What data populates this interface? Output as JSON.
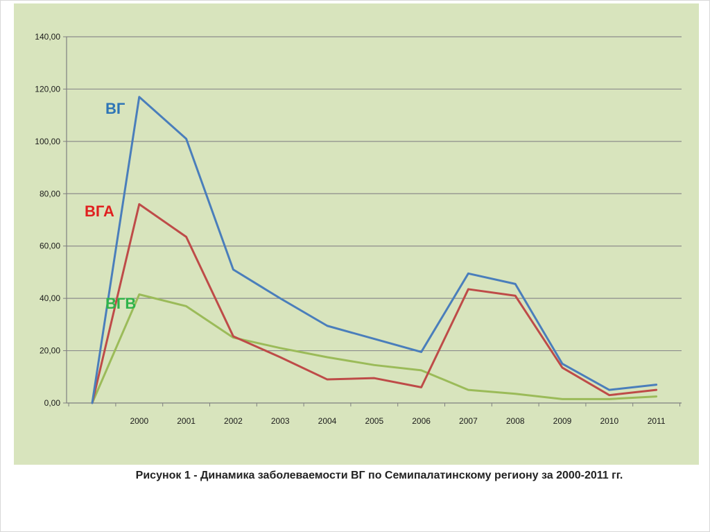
{
  "caption": "Рисунок 1 - Динамика заболеваемости ВГ по Семипалатинскому региону за 2000-2011 гг.",
  "colors": {
    "panel_background": "#d8e4bd",
    "gridline": "#8c8c8c"
  },
  "chart_data": {
    "type": "line",
    "x": [
      "",
      "2000",
      "2001",
      "2002",
      "2003",
      "2004",
      "2005",
      "2006",
      "2007",
      "2008",
      "2009",
      "2010",
      "2011"
    ],
    "y_ticks": [
      "0,00",
      "20,00",
      "40,00",
      "60,00",
      "80,00",
      "100,00",
      "120,00",
      "140,00"
    ],
    "ylim": [
      0,
      140
    ],
    "grid": true,
    "legend": "inline",
    "series": [
      {
        "name": "ВГ",
        "color": "#4a7ebb",
        "label_color": "#2e75b6",
        "values": [
          0,
          117,
          101,
          51,
          40,
          29.5,
          24.5,
          19.5,
          49.5,
          45.5,
          15,
          5,
          7
        ]
      },
      {
        "name": "ВГА",
        "color": "#be4b48",
        "label_color": "#e02020",
        "values": [
          0,
          76,
          63.5,
          25.5,
          17.5,
          9,
          9.5,
          6,
          43.5,
          41,
          13.5,
          3,
          5
        ]
      },
      {
        "name": "ВГВ",
        "color": "#9bbb59",
        "label_color": "#2fb34a",
        "values": [
          0,
          41.5,
          37,
          25,
          21,
          17.5,
          14.5,
          12.5,
          5,
          3.5,
          1.5,
          1.5,
          2.5
        ]
      }
    ]
  }
}
